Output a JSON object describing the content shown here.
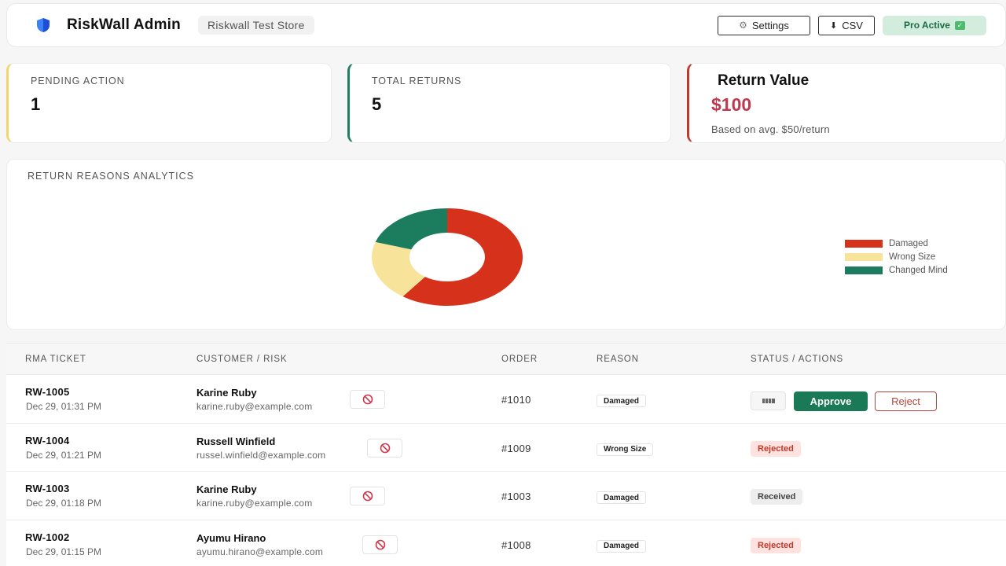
{
  "header": {
    "title": "RiskWall Admin",
    "store": "Riskwall Test Store",
    "settings_label": "Settings",
    "csv_label": "CSV",
    "pro_label": "Pro Active"
  },
  "cards": {
    "pending": {
      "label": "PENDING ACTION",
      "value": "1"
    },
    "total": {
      "label": "TOTAL RETURNS",
      "value": "5"
    },
    "value": {
      "title": "Return Value",
      "amount": "$100",
      "note": "Based on avg. $50/return"
    }
  },
  "analytics": {
    "title": "RETURN REASONS ANALYTICS"
  },
  "chart_data": {
    "type": "pie",
    "donut": true,
    "categories": [
      "Damaged",
      "Wrong Size",
      "Changed Mind"
    ],
    "values": [
      3,
      1,
      1
    ],
    "colors": [
      "#d5311b",
      "#f8e39a",
      "#1b7c5e"
    ],
    "legend": "right"
  },
  "table": {
    "headers": {
      "ticket": "RMA TICKET",
      "customer": "CUSTOMER / RISK",
      "order": "ORDER",
      "reason": "REASON",
      "status": "STATUS / ACTIONS"
    },
    "rows": [
      {
        "id": "RW-1005",
        "date": "Dec 29, 01:31 PM",
        "name": "Karine Ruby",
        "email": "karine.ruby@example.com",
        "order": "#1010",
        "reason": "Damaged",
        "status": "",
        "approve": "Approve",
        "reject": "Reject"
      },
      {
        "id": "RW-1004",
        "date": "Dec 29, 01:21 PM",
        "name": "Russell Winfield",
        "email": "russel.winfield@example.com",
        "order": "#1009",
        "reason": "Wrong Size",
        "status": "Rejected"
      },
      {
        "id": "RW-1003",
        "date": "Dec 29, 01:18 PM",
        "name": "Karine Ruby",
        "email": "karine.ruby@example.com",
        "order": "#1003",
        "reason": "Damaged",
        "status": "Received"
      },
      {
        "id": "RW-1002",
        "date": "Dec 29, 01:15 PM",
        "name": "Ayumu Hirano",
        "email": "ayumu.hirano@example.com",
        "order": "#1008",
        "reason": "Damaged",
        "status": "Rejected"
      }
    ]
  },
  "colors": {
    "accent_green": "#1a7a57",
    "danger": "#c0392b",
    "money": "#c0384f"
  }
}
